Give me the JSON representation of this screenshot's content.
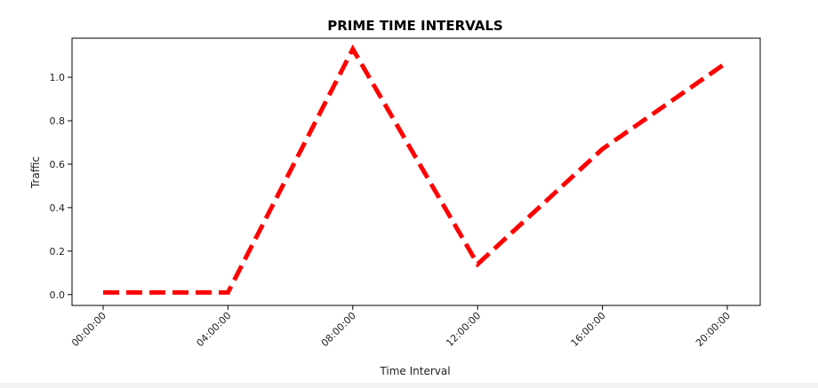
{
  "chart_data": {
    "type": "line",
    "title": "PRIME TIME INTERVALS",
    "xlabel": "Time Interval",
    "ylabel": "Traffic",
    "categories": [
      "00:00:00",
      "04:00:00",
      "08:00:00",
      "12:00:00",
      "16:00:00",
      "20:00:00"
    ],
    "series": [
      {
        "values": [
          0.01,
          0.01,
          1.13,
          0.14,
          0.67,
          1.07
        ]
      }
    ],
    "yticks": [
      "0.0",
      "0.2",
      "0.4",
      "0.6",
      "0.8",
      "1.0"
    ],
    "ylim": [
      -0.05,
      1.18
    ],
    "grid": false,
    "line_color": "#ff0000",
    "line_style": "dashed",
    "xtick_rotation_deg": 45
  }
}
